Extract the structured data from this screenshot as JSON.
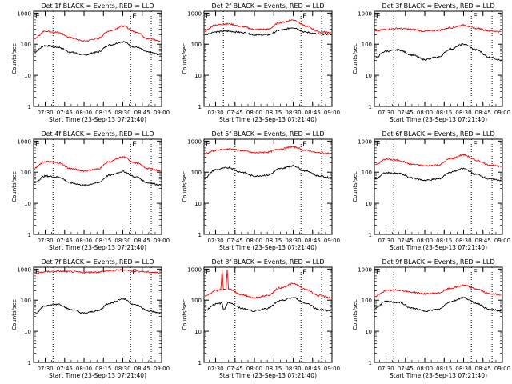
{
  "figure": {
    "xlabel": "Start Time (23-Sep-13 07:21:40)",
    "ylabel": "Counts/sec",
    "x_ticks": [
      "07:30",
      "07:45",
      "08:00",
      "08:15",
      "08:30",
      "08:45",
      "09:00"
    ],
    "y_ticks": [
      "1",
      "10",
      "100",
      "1000"
    ],
    "flag_label": "E",
    "colors": {
      "events": "#000000",
      "lld": "#ff0000",
      "axes": "#000000",
      "background": "#ffffff"
    }
  },
  "chart_data": [
    {
      "type": "line",
      "title": "Det 1f BLACK = Events, RED = LLD",
      "xlabel": "Start Time (23-Sep-13 07:21:40)",
      "ylabel": "Counts/sec",
      "yscale": "log",
      "ylim": [
        1,
        1000
      ],
      "x_range": [
        "07:21",
        "09:00"
      ],
      "dotted_lines": [
        "07:36",
        "08:36",
        "08:52"
      ],
      "series": [
        {
          "name": "Events",
          "color": "#000000",
          "x": [
            "07:21",
            "07:30",
            "07:40",
            "07:50",
            "08:00",
            "08:10",
            "08:20",
            "08:30",
            "08:40",
            "08:50",
            "09:00"
          ],
          "values": [
            55,
            90,
            80,
            55,
            45,
            55,
            95,
            120,
            80,
            55,
            45
          ]
        },
        {
          "name": "LLD",
          "color": "#ff0000",
          "x": [
            "07:21",
            "07:30",
            "07:40",
            "07:50",
            "08:00",
            "08:10",
            "08:20",
            "08:30",
            "08:40",
            "08:50",
            "09:00"
          ],
          "values": [
            150,
            260,
            240,
            160,
            125,
            150,
            270,
            380,
            250,
            150,
            125
          ]
        }
      ]
    },
    {
      "type": "line",
      "title": "Det 2f BLACK = Events, RED = LLD",
      "xlabel": "Start Time (23-Sep-13 07:21:40)",
      "ylabel": "Counts/sec",
      "yscale": "log",
      "ylim": [
        1,
        1000
      ],
      "x_range": [
        "07:21",
        "09:00"
      ],
      "dotted_lines": [
        "07:36",
        "08:36",
        "08:52"
      ],
      "series": [
        {
          "name": "Events",
          "color": "#000000",
          "x": [
            "07:21",
            "07:30",
            "07:40",
            "07:50",
            "08:00",
            "08:10",
            "08:20",
            "08:30",
            "08:40",
            "08:50",
            "09:00"
          ],
          "values": [
            200,
            250,
            260,
            240,
            200,
            200,
            280,
            340,
            240,
            210,
            210
          ]
        },
        {
          "name": "LLD",
          "color": "#ff0000",
          "x": [
            "07:21",
            "07:30",
            "07:40",
            "07:50",
            "08:00",
            "08:10",
            "08:20",
            "08:30",
            "08:40",
            "08:50",
            "09:00"
          ],
          "values": [
            260,
            420,
            450,
            370,
            300,
            300,
            500,
            600,
            380,
            250,
            240
          ]
        }
      ]
    },
    {
      "type": "line",
      "title": "Det 3f BLACK = Events, RED = LLD",
      "xlabel": "Start Time (23-Sep-13 07:21:40)",
      "ylabel": "Counts/sec",
      "yscale": "log",
      "ylim": [
        1,
        1000
      ],
      "x_range": [
        "07:21",
        "09:00"
      ],
      "dotted_lines": [
        "07:36",
        "08:36",
        "08:52"
      ],
      "series": [
        {
          "name": "Events",
          "color": "#000000",
          "x": [
            "07:21",
            "07:30",
            "07:40",
            "07:50",
            "08:00",
            "08:10",
            "08:20",
            "08:30",
            "08:40",
            "08:50",
            "09:00"
          ],
          "values": [
            35,
            60,
            65,
            45,
            32,
            38,
            70,
            100,
            65,
            38,
            30
          ]
        },
        {
          "name": "LLD",
          "color": "#ff0000",
          "x": [
            "07:21",
            "07:30",
            "07:40",
            "07:50",
            "08:00",
            "08:10",
            "08:20",
            "08:30",
            "08:40",
            "08:50",
            "09:00"
          ],
          "values": [
            260,
            300,
            320,
            300,
            260,
            280,
            340,
            410,
            320,
            270,
            250
          ]
        }
      ]
    },
    {
      "type": "line",
      "title": "Det 4f BLACK = Events, RED = LLD",
      "xlabel": "Start Time (23-Sep-13 07:21:40)",
      "ylabel": "Counts/sec",
      "yscale": "log",
      "ylim": [
        1,
        1000
      ],
      "x_range": [
        "07:21",
        "09:00"
      ],
      "dotted_lines": [
        "07:36",
        "08:36",
        "08:52"
      ],
      "series": [
        {
          "name": "Events",
          "color": "#000000",
          "x": [
            "07:21",
            "07:30",
            "07:40",
            "07:50",
            "08:00",
            "08:10",
            "08:20",
            "08:30",
            "08:40",
            "08:50",
            "09:00"
          ],
          "values": [
            45,
            75,
            70,
            45,
            38,
            45,
            80,
            105,
            70,
            45,
            38
          ]
        },
        {
          "name": "LLD",
          "color": "#ff0000",
          "x": [
            "07:21",
            "07:30",
            "07:40",
            "07:50",
            "08:00",
            "08:10",
            "08:20",
            "08:30",
            "08:40",
            "08:50",
            "09:00"
          ],
          "values": [
            130,
            220,
            200,
            130,
            110,
            125,
            220,
            310,
            200,
            130,
            110
          ]
        }
      ]
    },
    {
      "type": "line",
      "title": "Det 5f BLACK = Events, RED = LLD",
      "xlabel": "Start Time (23-Sep-13 07:21:40)",
      "ylabel": "Counts/sec",
      "yscale": "log",
      "ylim": [
        1,
        1000
      ],
      "x_range": [
        "07:21",
        "09:00"
      ],
      "dotted_lines": [
        "07:45",
        "08:36",
        "08:52"
      ],
      "series": [
        {
          "name": "Events",
          "color": "#000000",
          "x": [
            "07:21",
            "07:30",
            "07:40",
            "07:50",
            "08:00",
            "08:10",
            "08:20",
            "08:30",
            "08:40",
            "08:50",
            "09:00"
          ],
          "values": [
            65,
            120,
            140,
            100,
            75,
            80,
            130,
            160,
            110,
            75,
            65
          ]
        },
        {
          "name": "LLD",
          "color": "#ff0000",
          "x": [
            "07:21",
            "07:30",
            "07:40",
            "07:50",
            "08:00",
            "08:10",
            "08:20",
            "08:30",
            "08:40",
            "08:50",
            "09:00"
          ],
          "values": [
            400,
            500,
            560,
            500,
            420,
            440,
            560,
            650,
            500,
            420,
            400
          ]
        }
      ]
    },
    {
      "type": "line",
      "title": "Det 6f BLACK = Events, RED = LLD",
      "xlabel": "Start Time (23-Sep-13 07:21:40)",
      "ylabel": "Counts/sec",
      "yscale": "log",
      "ylim": [
        1,
        1000
      ],
      "x_range": [
        "07:21",
        "09:00"
      ],
      "dotted_lines": [
        "07:36",
        "08:36",
        "08:52"
      ],
      "series": [
        {
          "name": "Events",
          "color": "#000000",
          "x": [
            "07:21",
            "07:30",
            "07:40",
            "07:50",
            "08:00",
            "08:10",
            "08:20",
            "08:30",
            "08:40",
            "08:50",
            "09:00"
          ],
          "values": [
            60,
            95,
            90,
            65,
            55,
            60,
            100,
            130,
            85,
            60,
            55
          ]
        },
        {
          "name": "LLD",
          "color": "#ff0000",
          "x": [
            "07:21",
            "07:30",
            "07:40",
            "07:50",
            "08:00",
            "08:10",
            "08:20",
            "08:30",
            "08:40",
            "08:50",
            "09:00"
          ],
          "values": [
            170,
            260,
            240,
            180,
            160,
            170,
            270,
            360,
            240,
            170,
            150
          ]
        }
      ]
    },
    {
      "type": "line",
      "title": "Det 7f BLACK = Events, RED = LLD",
      "xlabel": "Start Time (23-Sep-13 07:21:40)",
      "ylabel": "Counts/sec",
      "yscale": "log",
      "ylim": [
        1,
        1000
      ],
      "x_range": [
        "07:21",
        "09:00"
      ],
      "dotted_lines": [
        "07:36",
        "08:36",
        "08:52"
      ],
      "series": [
        {
          "name": "Events",
          "color": "#000000",
          "x": [
            "07:21",
            "07:30",
            "07:40",
            "07:50",
            "08:00",
            "08:10",
            "08:20",
            "08:30",
            "08:40",
            "08:50",
            "09:00"
          ],
          "values": [
            35,
            65,
            75,
            50,
            38,
            45,
            80,
            110,
            70,
            45,
            38
          ]
        },
        {
          "name": "LLD",
          "color": "#ff0000",
          "x": [
            "07:21",
            "07:30",
            "07:40",
            "07:50",
            "08:00",
            "08:10",
            "08:20",
            "08:30",
            "08:40",
            "08:50",
            "09:00"
          ],
          "values": [
            700,
            820,
            850,
            820,
            780,
            800,
            880,
            950,
            850,
            800,
            750
          ]
        }
      ]
    },
    {
      "type": "line",
      "title": "Det 8f BLACK = Events, RED = LLD",
      "xlabel": "Start Time (23-Sep-13 07:21:40)",
      "ylabel": "Counts/sec",
      "yscale": "log",
      "ylim": [
        1,
        1000
      ],
      "x_range": [
        "07:21",
        "09:00"
      ],
      "dotted_lines": [
        "07:45",
        "08:36",
        "08:52"
      ],
      "series": [
        {
          "name": "Events",
          "color": "#000000",
          "x": [
            "07:21",
            "07:30",
            "07:35",
            "07:36",
            "07:40",
            "07:50",
            "08:00",
            "08:10",
            "08:20",
            "08:30",
            "08:40",
            "08:50",
            "09:00"
          ],
          "values": [
            45,
            75,
            80,
            50,
            85,
            55,
            45,
            55,
            95,
            120,
            80,
            50,
            45
          ]
        },
        {
          "name": "LLD",
          "color": "#ff0000",
          "x": [
            "07:21",
            "07:30",
            "07:34",
            "07:35",
            "07:36",
            "07:38",
            "07:39",
            "07:40",
            "07:50",
            "08:00",
            "08:10",
            "08:20",
            "08:30",
            "08:40",
            "08:50",
            "09:00"
          ],
          "values": [
            130,
            200,
            220,
            1000,
            220,
            220,
            1000,
            230,
            150,
            120,
            140,
            250,
            340,
            220,
            140,
            120
          ]
        }
      ]
    },
    {
      "type": "line",
      "title": "Det 9f BLACK = Events, RED = LLD",
      "xlabel": "Start Time (23-Sep-13 07:21:40)",
      "ylabel": "Counts/sec",
      "yscale": "log",
      "ylim": [
        1,
        1000
      ],
      "x_range": [
        "07:21",
        "09:00"
      ],
      "dotted_lines": [
        "07:36",
        "08:36",
        "08:52"
      ],
      "series": [
        {
          "name": "Events",
          "color": "#000000",
          "x": [
            "07:21",
            "07:30",
            "07:40",
            "07:50",
            "08:00",
            "08:10",
            "08:20",
            "08:30",
            "08:40",
            "08:50",
            "09:00"
          ],
          "values": [
            55,
            90,
            85,
            55,
            45,
            50,
            90,
            120,
            80,
            50,
            45
          ]
        },
        {
          "name": "LLD",
          "color": "#ff0000",
          "x": [
            "07:21",
            "07:30",
            "07:40",
            "07:50",
            "08:00",
            "08:10",
            "08:20",
            "08:30",
            "08:40",
            "08:50",
            "09:00"
          ],
          "values": [
            130,
            200,
            210,
            180,
            160,
            170,
            240,
            300,
            230,
            160,
            150
          ]
        }
      ]
    }
  ]
}
